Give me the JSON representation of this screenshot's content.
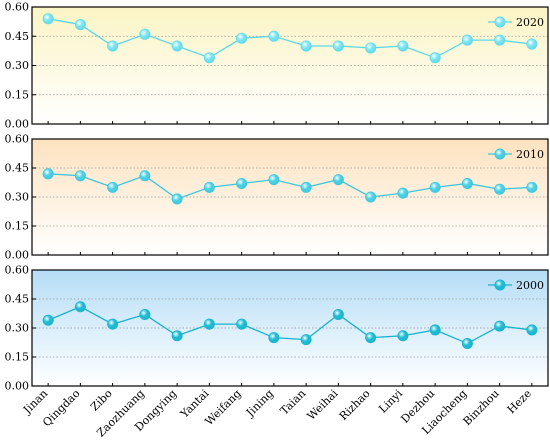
{
  "chart_data": [
    {
      "type": "line",
      "series": [
        {
          "name": "2020",
          "values": [
            0.54,
            0.51,
            0.4,
            0.46,
            0.4,
            0.34,
            0.44,
            0.45,
            0.4,
            0.4,
            0.39,
            0.4,
            0.34,
            0.43,
            0.43,
            0.41
          ]
        }
      ],
      "ylim": [
        0,
        0.6
      ],
      "yticks": [
        "0.00",
        "0.15",
        "0.30",
        "0.45",
        "0.60"
      ],
      "legend_position": "top-right",
      "colors": {
        "line": "#5dd8e8",
        "marker": "#7fe6f2",
        "bg_top": "#fbf4c4",
        "bg_bottom": "#ffffff"
      }
    },
    {
      "type": "line",
      "series": [
        {
          "name": "2010",
          "values": [
            0.42,
            0.41,
            0.35,
            0.41,
            0.29,
            0.35,
            0.37,
            0.39,
            0.35,
            0.39,
            0.3,
            0.32,
            0.35,
            0.37,
            0.34,
            0.35
          ]
        }
      ],
      "ylim": [
        0,
        0.6
      ],
      "yticks": [
        "0.00",
        "0.15",
        "0.30",
        "0.45",
        "0.60"
      ],
      "legend_position": "top-right",
      "colors": {
        "line": "#3ec6dc",
        "marker": "#4fd2e6",
        "bg_top": "#fde2bf",
        "bg_bottom": "#ffffff"
      }
    },
    {
      "type": "line",
      "categories": [
        "Jinan",
        "Qingdao",
        "Zibo",
        "Zaozhuang",
        "Dongying",
        "Yantai",
        "Weifang",
        "Jining",
        "Taian",
        "Weihai",
        "Rizhao",
        "Linyi",
        "Dezhou",
        "Liaocheng",
        "Binzhou",
        "Heze"
      ],
      "series": [
        {
          "name": "2000",
          "values": [
            0.34,
            0.41,
            0.32,
            0.37,
            0.26,
            0.32,
            0.32,
            0.25,
            0.24,
            0.37,
            0.25,
            0.26,
            0.29,
            0.22,
            0.31,
            0.29
          ]
        }
      ],
      "ylim": [
        0,
        0.6
      ],
      "yticks": [
        "0.00",
        "0.15",
        "0.30",
        "0.45",
        "0.60"
      ],
      "legend_position": "top-right",
      "colors": {
        "line": "#18b4cc",
        "marker": "#22bdd4",
        "bg_top": "#b5ddf6",
        "bg_bottom": "#ffffff"
      }
    }
  ]
}
